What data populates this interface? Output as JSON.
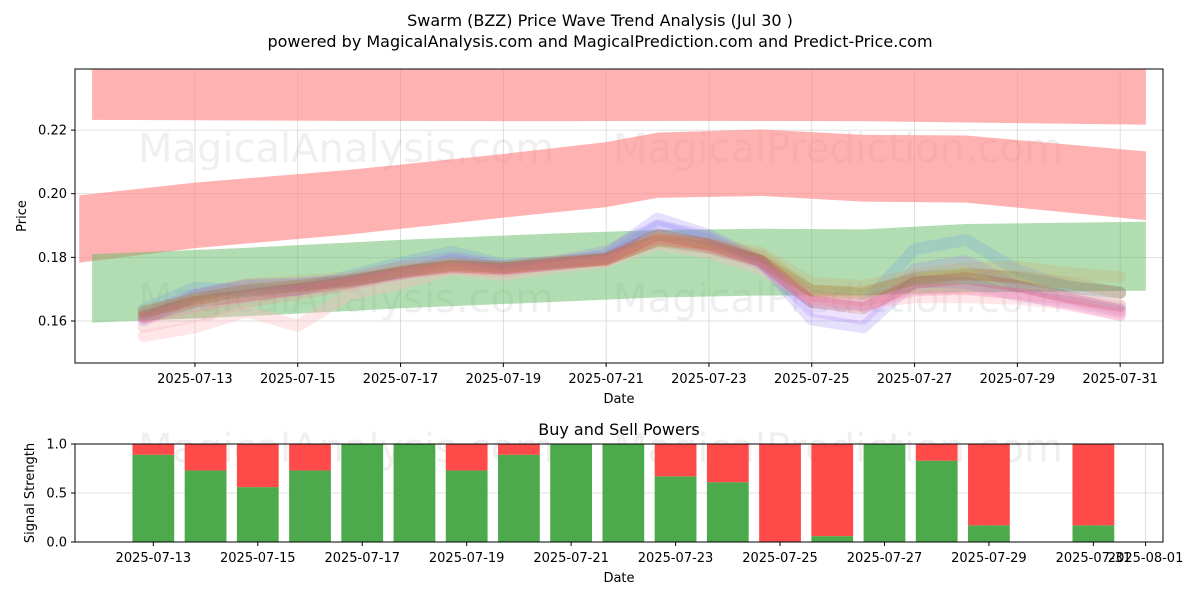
{
  "title": "Swarm (BZZ) Price Wave Trend Analysis (Jul 30 )",
  "subtitle": "powered by MagicalAnalysis.com and MagicalPrediction.com and Predict-Price.com",
  "watermarks": [
    "MagicalAnalysis.com",
    "MagicalPrediction.com"
  ],
  "chart_data": [
    {
      "type": "area",
      "title": "",
      "xlabel": "Date",
      "ylabel": "Price",
      "xlim": [
        "2025-07-10T16:00",
        "2025-07-31T20:00"
      ],
      "ylim": [
        0.1468,
        0.2392
      ],
      "yticks": [
        0.16,
        0.18,
        0.2,
        0.22
      ],
      "xticks": [
        "2025-07-13",
        "2025-07-15",
        "2025-07-17",
        "2025-07-19",
        "2025-07-21",
        "2025-07-23",
        "2025-07-25",
        "2025-07-27",
        "2025-07-29",
        "2025-07-31"
      ],
      "grid": true,
      "bands": [
        {
          "color": "#ff7f7f",
          "opacity": 0.6,
          "x": [
            "2025-07-11",
            "2025-07-13",
            "2025-07-16",
            "2025-07-20",
            "2025-07-23",
            "2025-07-26",
            "2025-07-31T12:00"
          ],
          "upper": [
            0.239,
            0.2392,
            0.2392,
            0.2392,
            0.2392,
            0.2392,
            0.2392
          ],
          "lower": [
            0.2232,
            0.2231,
            0.2229,
            0.2228,
            0.2229,
            0.2228,
            0.2217
          ]
        },
        {
          "color": "#ff7f7f",
          "opacity": 0.6,
          "x": [
            "2025-07-10T18:00",
            "2025-07-13",
            "2025-07-16",
            "2025-07-19",
            "2025-07-21",
            "2025-07-22",
            "2025-07-24",
            "2025-07-26",
            "2025-07-28",
            "2025-07-31T12:00"
          ],
          "upper": [
            0.1995,
            0.2035,
            0.2075,
            0.2125,
            0.2162,
            0.2192,
            0.2202,
            0.2185,
            0.2183,
            0.2133
          ],
          "lower": [
            0.1783,
            0.1829,
            0.1872,
            0.1925,
            0.1958,
            0.1987,
            0.1993,
            0.1975,
            0.1972,
            0.1917
          ]
        },
        {
          "color": "#66bb66",
          "opacity": 0.5,
          "x": [
            "2025-07-11",
            "2025-07-14",
            "2025-07-17",
            "2025-07-20",
            "2025-07-22",
            "2025-07-24",
            "2025-07-26",
            "2025-07-28",
            "2025-07-31T12:00"
          ],
          "upper": [
            0.181,
            0.183,
            0.1855,
            0.1875,
            0.1886,
            0.189,
            0.1888,
            0.1905,
            0.1912
          ],
          "lower": [
            0.1595,
            0.1615,
            0.164,
            0.166,
            0.1674,
            0.168,
            0.168,
            0.169,
            0.1695
          ]
        }
      ],
      "wave_dates": [
        "2025-07-12",
        "2025-07-13",
        "2025-07-14",
        "2025-07-15",
        "2025-07-16",
        "2025-07-17",
        "2025-07-18",
        "2025-07-19",
        "2025-07-20",
        "2025-07-21",
        "2025-07-22",
        "2025-07-23",
        "2025-07-24",
        "2025-07-25",
        "2025-07-26",
        "2025-07-27",
        "2025-07-28",
        "2025-07-29",
        "2025-07-30",
        "2025-07-31"
      ],
      "wave_center": [
        0.1622,
        0.1665,
        0.169,
        0.1705,
        0.1722,
        0.1748,
        0.1772,
        0.1765,
        0.1778,
        0.179,
        0.1852,
        0.183,
        0.179,
        0.169,
        0.1675,
        0.1735,
        0.1745,
        0.173,
        0.17,
        0.1678
      ],
      "waves": [
        {
          "color": "#6495ed",
          "opacity": 0.22,
          "width": 12,
          "offsets": [
            0.0015,
            0.004,
            0.0005,
            -0.0008,
            0.002,
            0.0035,
            0.0045,
            0.0012,
            0.0008,
            0.001,
            0.0045,
            0.0025,
            -0.001,
            -0.003,
            -0.0025,
            0.009,
            0.011,
            0.003,
            0.0005,
            0.0012
          ]
        },
        {
          "color": "#7b68ee",
          "opacity": 0.2,
          "width": 12,
          "offsets": [
            -0.002,
            0.0015,
            0.002,
            0.001,
            0.0005,
            0.0,
            0.002,
            0.0,
            0.0004,
            0.0018,
            0.007,
            0.004,
            0.0,
            -0.0085,
            -0.0095,
            -0.001,
            -0.0025,
            -0.005,
            -0.004,
            -0.005
          ]
        },
        {
          "color": "#a060ff",
          "opacity": 0.18,
          "width": 11,
          "offsets": [
            0.0,
            0.002,
            0.0025,
            0.0015,
            0.001,
            0.0025,
            0.003,
            0.001,
            0.001,
            0.003,
            0.005,
            0.0035,
            -0.0005,
            -0.006,
            -0.007,
            0.003,
            0.0045,
            -0.002,
            -0.003,
            -0.004
          ]
        },
        {
          "color": "#f08080",
          "opacity": 0.22,
          "width": 12,
          "offsets": [
            -0.004,
            -0.005,
            -0.003,
            -0.002,
            -0.001,
            0.0,
            -0.0005,
            -0.001,
            0.0,
            0.0005,
            0.001,
            0.0005,
            0.0,
            -0.001,
            -0.001,
            -0.0035,
            -0.0045,
            -0.0045,
            -0.003,
            -0.0045
          ]
        },
        {
          "color": "#ffb6c1",
          "opacity": 0.35,
          "width": 12,
          "offsets": [
            -0.007,
            -0.0085,
            -0.006,
            -0.012,
            -0.004,
            -0.003,
            -0.001,
            -0.002,
            -0.001,
            -0.0005,
            -0.001,
            -0.0015,
            -0.0025,
            -0.002,
            -0.002,
            -0.006,
            -0.007,
            -0.006,
            -0.0045,
            -0.006
          ]
        },
        {
          "color": "#cd853f",
          "opacity": 0.22,
          "width": 12,
          "offsets": [
            0.001,
            0.0,
            0.001,
            0.0005,
            0.0005,
            0.001,
            0.0,
            0.0,
            0.0005,
            0.0,
            0.0005,
            0.001,
            0.0015,
            0.0005,
            0.0015,
            -0.0005,
            0.0,
            0.001,
            0.002,
            0.001
          ]
        },
        {
          "color": "#d2a060",
          "opacity": 0.22,
          "width": 12,
          "offsets": [
            -0.0005,
            0.001,
            0.0025,
            0.002,
            0.0015,
            0.002,
            0.001,
            0.0005,
            0.001,
            0.0005,
            0.0,
            0.0015,
            0.0025,
            0.003,
            0.0035,
            0.001,
            0.002,
            0.004,
            0.005,
            0.006
          ]
        },
        {
          "color": "#b22222",
          "opacity": 0.2,
          "width": 12,
          "offsets": [
            -0.001,
            -0.0005,
            -0.001,
            -0.0005,
            0.0,
            0.0005,
            0.0,
            0.0,
            0.0,
            0.0005,
            0.002,
            0.001,
            0.0,
            -0.003,
            -0.0035,
            -0.0015,
            -0.001,
            -0.002,
            -0.0025,
            -0.003
          ]
        },
        {
          "color": "#ff69b4",
          "opacity": 0.2,
          "width": 11,
          "offsets": [
            -0.0015,
            -0.002,
            -0.0015,
            -0.001,
            -0.0005,
            0.0,
            -0.0005,
            -0.0005,
            0.0,
            0.0,
            0.0005,
            0.0,
            -0.001,
            -0.0025,
            -0.003,
            -0.004,
            -0.0045,
            -0.0045,
            -0.005,
            -0.006
          ]
        },
        {
          "color": "#8b6b2b",
          "opacity": 0.18,
          "width": 12,
          "offsets": [
            0.0005,
            0.0005,
            0.0005,
            0.0005,
            0.0005,
            0.0005,
            0.0005,
            0.0005,
            0.0005,
            0.0005,
            0.0,
            0.0,
            0.0,
            0.0005,
            0.001,
            0.0,
            0.0005,
            0.0005,
            0.001,
            0.001
          ]
        }
      ]
    },
    {
      "type": "bar",
      "title": "Buy and Sell Powers",
      "xlabel": "Date",
      "ylabel": "Signal Strength",
      "xlim": [
        "2025-07-11T12:00",
        "2025-08-01T08:00"
      ],
      "ylim": [
        0,
        1
      ],
      "yticks": [
        "0.0",
        "0.5",
        "1.0"
      ],
      "xticks": [
        "2025-07-13",
        "2025-07-15",
        "2025-07-17",
        "2025-07-19",
        "2025-07-21",
        "2025-07-23",
        "2025-07-25",
        "2025-07-27",
        "2025-07-29",
        "2025-07-31",
        "2025-08-01"
      ],
      "grid": true,
      "buy_color": "#4caa4c",
      "sell_color": "#ff4a4a",
      "dates": [
        "2025-07-13",
        "2025-07-14",
        "2025-07-15",
        "2025-07-16",
        "2025-07-17",
        "2025-07-18",
        "2025-07-19",
        "2025-07-20",
        "2025-07-21",
        "2025-07-22",
        "2025-07-23",
        "2025-07-24",
        "2025-07-25",
        "2025-07-26",
        "2025-07-27",
        "2025-07-28",
        "2025-07-29",
        "2025-07-31"
      ],
      "buy": [
        0.89,
        0.73,
        0.56,
        0.73,
        1.0,
        1.0,
        0.73,
        0.89,
        1.0,
        1.0,
        0.67,
        0.61,
        0.0,
        0.06,
        1.0,
        0.83,
        0.17,
        0.17
      ],
      "sell": [
        0.11,
        0.27,
        0.44,
        0.27,
        0.0,
        0.0,
        0.27,
        0.11,
        0.0,
        0.0,
        0.33,
        0.39,
        1.0,
        0.94,
        0.0,
        0.17,
        0.83,
        0.83
      ]
    }
  ]
}
